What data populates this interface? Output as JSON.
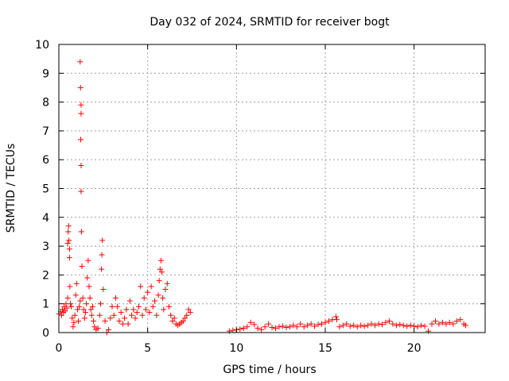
{
  "chart_data": {
    "type": "scatter",
    "title": "Day 032 of 2024, SRMTID for receiver bogt",
    "xlabel": "GPS time / hours",
    "ylabel": "SRMTID / TECUs",
    "xlim": [
      0,
      24
    ],
    "ylim": [
      0,
      10
    ],
    "xticks": [
      0,
      5,
      10,
      15,
      20
    ],
    "yticks": [
      0,
      1,
      2,
      3,
      4,
      5,
      6,
      7,
      8,
      9,
      10
    ],
    "grid": true,
    "marker": "+",
    "color": "#ff0000",
    "series": [
      {
        "name": "SRMTID",
        "points": [
          [
            0.0,
            0.65
          ],
          [
            0.1,
            0.72
          ],
          [
            0.15,
            0.6
          ],
          [
            0.2,
            0.8
          ],
          [
            0.25,
            0.7
          ],
          [
            0.3,
            0.9
          ],
          [
            0.35,
            0.75
          ],
          [
            0.4,
            1.0
          ],
          [
            0.45,
            0.85
          ],
          [
            0.5,
            1.2
          ],
          [
            0.5,
            3.1
          ],
          [
            0.52,
            3.5
          ],
          [
            0.55,
            3.7
          ],
          [
            0.57,
            3.2
          ],
          [
            0.6,
            2.9
          ],
          [
            0.6,
            2.6
          ],
          [
            0.62,
            1.6
          ],
          [
            0.65,
            1.0
          ],
          [
            0.7,
            0.9
          ],
          [
            0.75,
            0.5
          ],
          [
            0.8,
            0.2
          ],
          [
            0.85,
            0.35
          ],
          [
            0.9,
            0.6
          ],
          [
            0.95,
            1.3
          ],
          [
            1.0,
            1.7
          ],
          [
            1.05,
            0.8
          ],
          [
            1.1,
            0.4
          ],
          [
            1.15,
            0.9
          ],
          [
            1.2,
            1.1
          ],
          [
            1.2,
            9.4
          ],
          [
            1.22,
            8.5
          ],
          [
            1.25,
            7.9
          ],
          [
            1.25,
            7.6
          ],
          [
            1.23,
            6.7
          ],
          [
            1.25,
            5.8
          ],
          [
            1.25,
            4.9
          ],
          [
            1.27,
            3.5
          ],
          [
            1.3,
            2.3
          ],
          [
            1.35,
            1.2
          ],
          [
            1.4,
            0.8
          ],
          [
            1.45,
            0.5
          ],
          [
            1.5,
            0.7
          ],
          [
            1.55,
            1.0
          ],
          [
            1.6,
            1.9
          ],
          [
            1.65,
            2.5
          ],
          [
            1.7,
            1.6
          ],
          [
            1.75,
            1.2
          ],
          [
            1.8,
            0.8
          ],
          [
            1.85,
            0.6
          ],
          [
            1.9,
            0.9
          ],
          [
            1.95,
            0.4
          ],
          [
            2.0,
            0.2
          ],
          [
            2.1,
            0.1
          ],
          [
            2.2,
            0.15
          ],
          [
            2.3,
            0.6
          ],
          [
            2.35,
            1.0
          ],
          [
            2.4,
            2.2
          ],
          [
            2.42,
            2.7
          ],
          [
            2.45,
            3.2
          ],
          [
            2.5,
            1.5
          ],
          [
            2.6,
            0.4
          ],
          [
            2.7,
            0.0
          ],
          [
            2.8,
            0.1
          ],
          [
            2.9,
            0.5
          ],
          [
            3.0,
            0.9
          ],
          [
            3.1,
            0.6
          ],
          [
            3.2,
            1.2
          ],
          [
            3.3,
            0.9
          ],
          [
            3.4,
            0.4
          ],
          [
            3.5,
            0.7
          ],
          [
            3.6,
            0.3
          ],
          [
            3.7,
            0.5
          ],
          [
            3.8,
            0.8
          ],
          [
            3.9,
            0.3
          ],
          [
            4.0,
            1.1
          ],
          [
            4.1,
            0.6
          ],
          [
            4.2,
            0.8
          ],
          [
            4.3,
            0.5
          ],
          [
            4.4,
            0.7
          ],
          [
            4.5,
            0.9
          ],
          [
            4.6,
            1.6
          ],
          [
            4.7,
            0.6
          ],
          [
            4.8,
            1.2
          ],
          [
            4.9,
            0.8
          ],
          [
            5.0,
            1.4
          ],
          [
            5.1,
            0.7
          ],
          [
            5.2,
            1.6
          ],
          [
            5.3,
            0.9
          ],
          [
            5.4,
            1.1
          ],
          [
            5.5,
            0.6
          ],
          [
            5.6,
            1.3
          ],
          [
            5.65,
            1.8
          ],
          [
            5.7,
            2.2
          ],
          [
            5.75,
            2.5
          ],
          [
            5.8,
            2.1
          ],
          [
            5.85,
            1.2
          ],
          [
            5.9,
            0.8
          ],
          [
            6.0,
            1.5
          ],
          [
            6.1,
            1.7
          ],
          [
            6.2,
            0.9
          ],
          [
            6.3,
            0.6
          ],
          [
            6.4,
            0.4
          ],
          [
            6.5,
            0.5
          ],
          [
            6.6,
            0.3
          ],
          [
            6.7,
            0.25
          ],
          [
            6.8,
            0.3
          ],
          [
            6.9,
            0.35
          ],
          [
            7.0,
            0.4
          ],
          [
            7.1,
            0.5
          ],
          [
            7.2,
            0.6
          ],
          [
            7.3,
            0.8
          ],
          [
            7.4,
            0.7
          ],
          [
            9.6,
            0.05
          ],
          [
            9.8,
            0.08
          ],
          [
            10.0,
            0.1
          ],
          [
            10.2,
            0.12
          ],
          [
            10.4,
            0.15
          ],
          [
            10.6,
            0.2
          ],
          [
            10.8,
            0.35
          ],
          [
            11.0,
            0.28
          ],
          [
            11.2,
            0.15
          ],
          [
            11.4,
            0.1
          ],
          [
            11.6,
            0.2
          ],
          [
            11.8,
            0.3
          ],
          [
            12.0,
            0.18
          ],
          [
            12.2,
            0.15
          ],
          [
            12.4,
            0.2
          ],
          [
            12.6,
            0.22
          ],
          [
            12.8,
            0.18
          ],
          [
            13.0,
            0.2
          ],
          [
            13.2,
            0.25
          ],
          [
            13.4,
            0.2
          ],
          [
            13.6,
            0.3
          ],
          [
            13.8,
            0.2
          ],
          [
            14.0,
            0.25
          ],
          [
            14.2,
            0.3
          ],
          [
            14.4,
            0.22
          ],
          [
            14.6,
            0.28
          ],
          [
            14.8,
            0.3
          ],
          [
            15.0,
            0.35
          ],
          [
            15.2,
            0.4
          ],
          [
            15.4,
            0.45
          ],
          [
            15.6,
            0.55
          ],
          [
            15.65,
            0.45
          ],
          [
            15.8,
            0.2
          ],
          [
            16.0,
            0.25
          ],
          [
            16.2,
            0.3
          ],
          [
            16.4,
            0.22
          ],
          [
            16.6,
            0.25
          ],
          [
            16.8,
            0.2
          ],
          [
            17.0,
            0.25
          ],
          [
            17.2,
            0.22
          ],
          [
            17.4,
            0.25
          ],
          [
            17.6,
            0.3
          ],
          [
            17.8,
            0.25
          ],
          [
            18.0,
            0.3
          ],
          [
            18.2,
            0.28
          ],
          [
            18.4,
            0.35
          ],
          [
            18.6,
            0.4
          ],
          [
            18.8,
            0.3
          ],
          [
            19.0,
            0.25
          ],
          [
            19.2,
            0.28
          ],
          [
            19.4,
            0.25
          ],
          [
            19.6,
            0.22
          ],
          [
            19.8,
            0.25
          ],
          [
            20.0,
            0.22
          ],
          [
            20.2,
            0.2
          ],
          [
            20.4,
            0.25
          ],
          [
            20.6,
            0.22
          ],
          [
            20.8,
            0.05
          ],
          [
            21.0,
            0.3
          ],
          [
            21.2,
            0.4
          ],
          [
            21.4,
            0.3
          ],
          [
            21.6,
            0.35
          ],
          [
            21.8,
            0.3
          ],
          [
            22.0,
            0.35
          ],
          [
            22.2,
            0.3
          ],
          [
            22.4,
            0.4
          ],
          [
            22.6,
            0.45
          ],
          [
            22.8,
            0.3
          ],
          [
            22.9,
            0.25
          ]
        ]
      }
    ]
  }
}
